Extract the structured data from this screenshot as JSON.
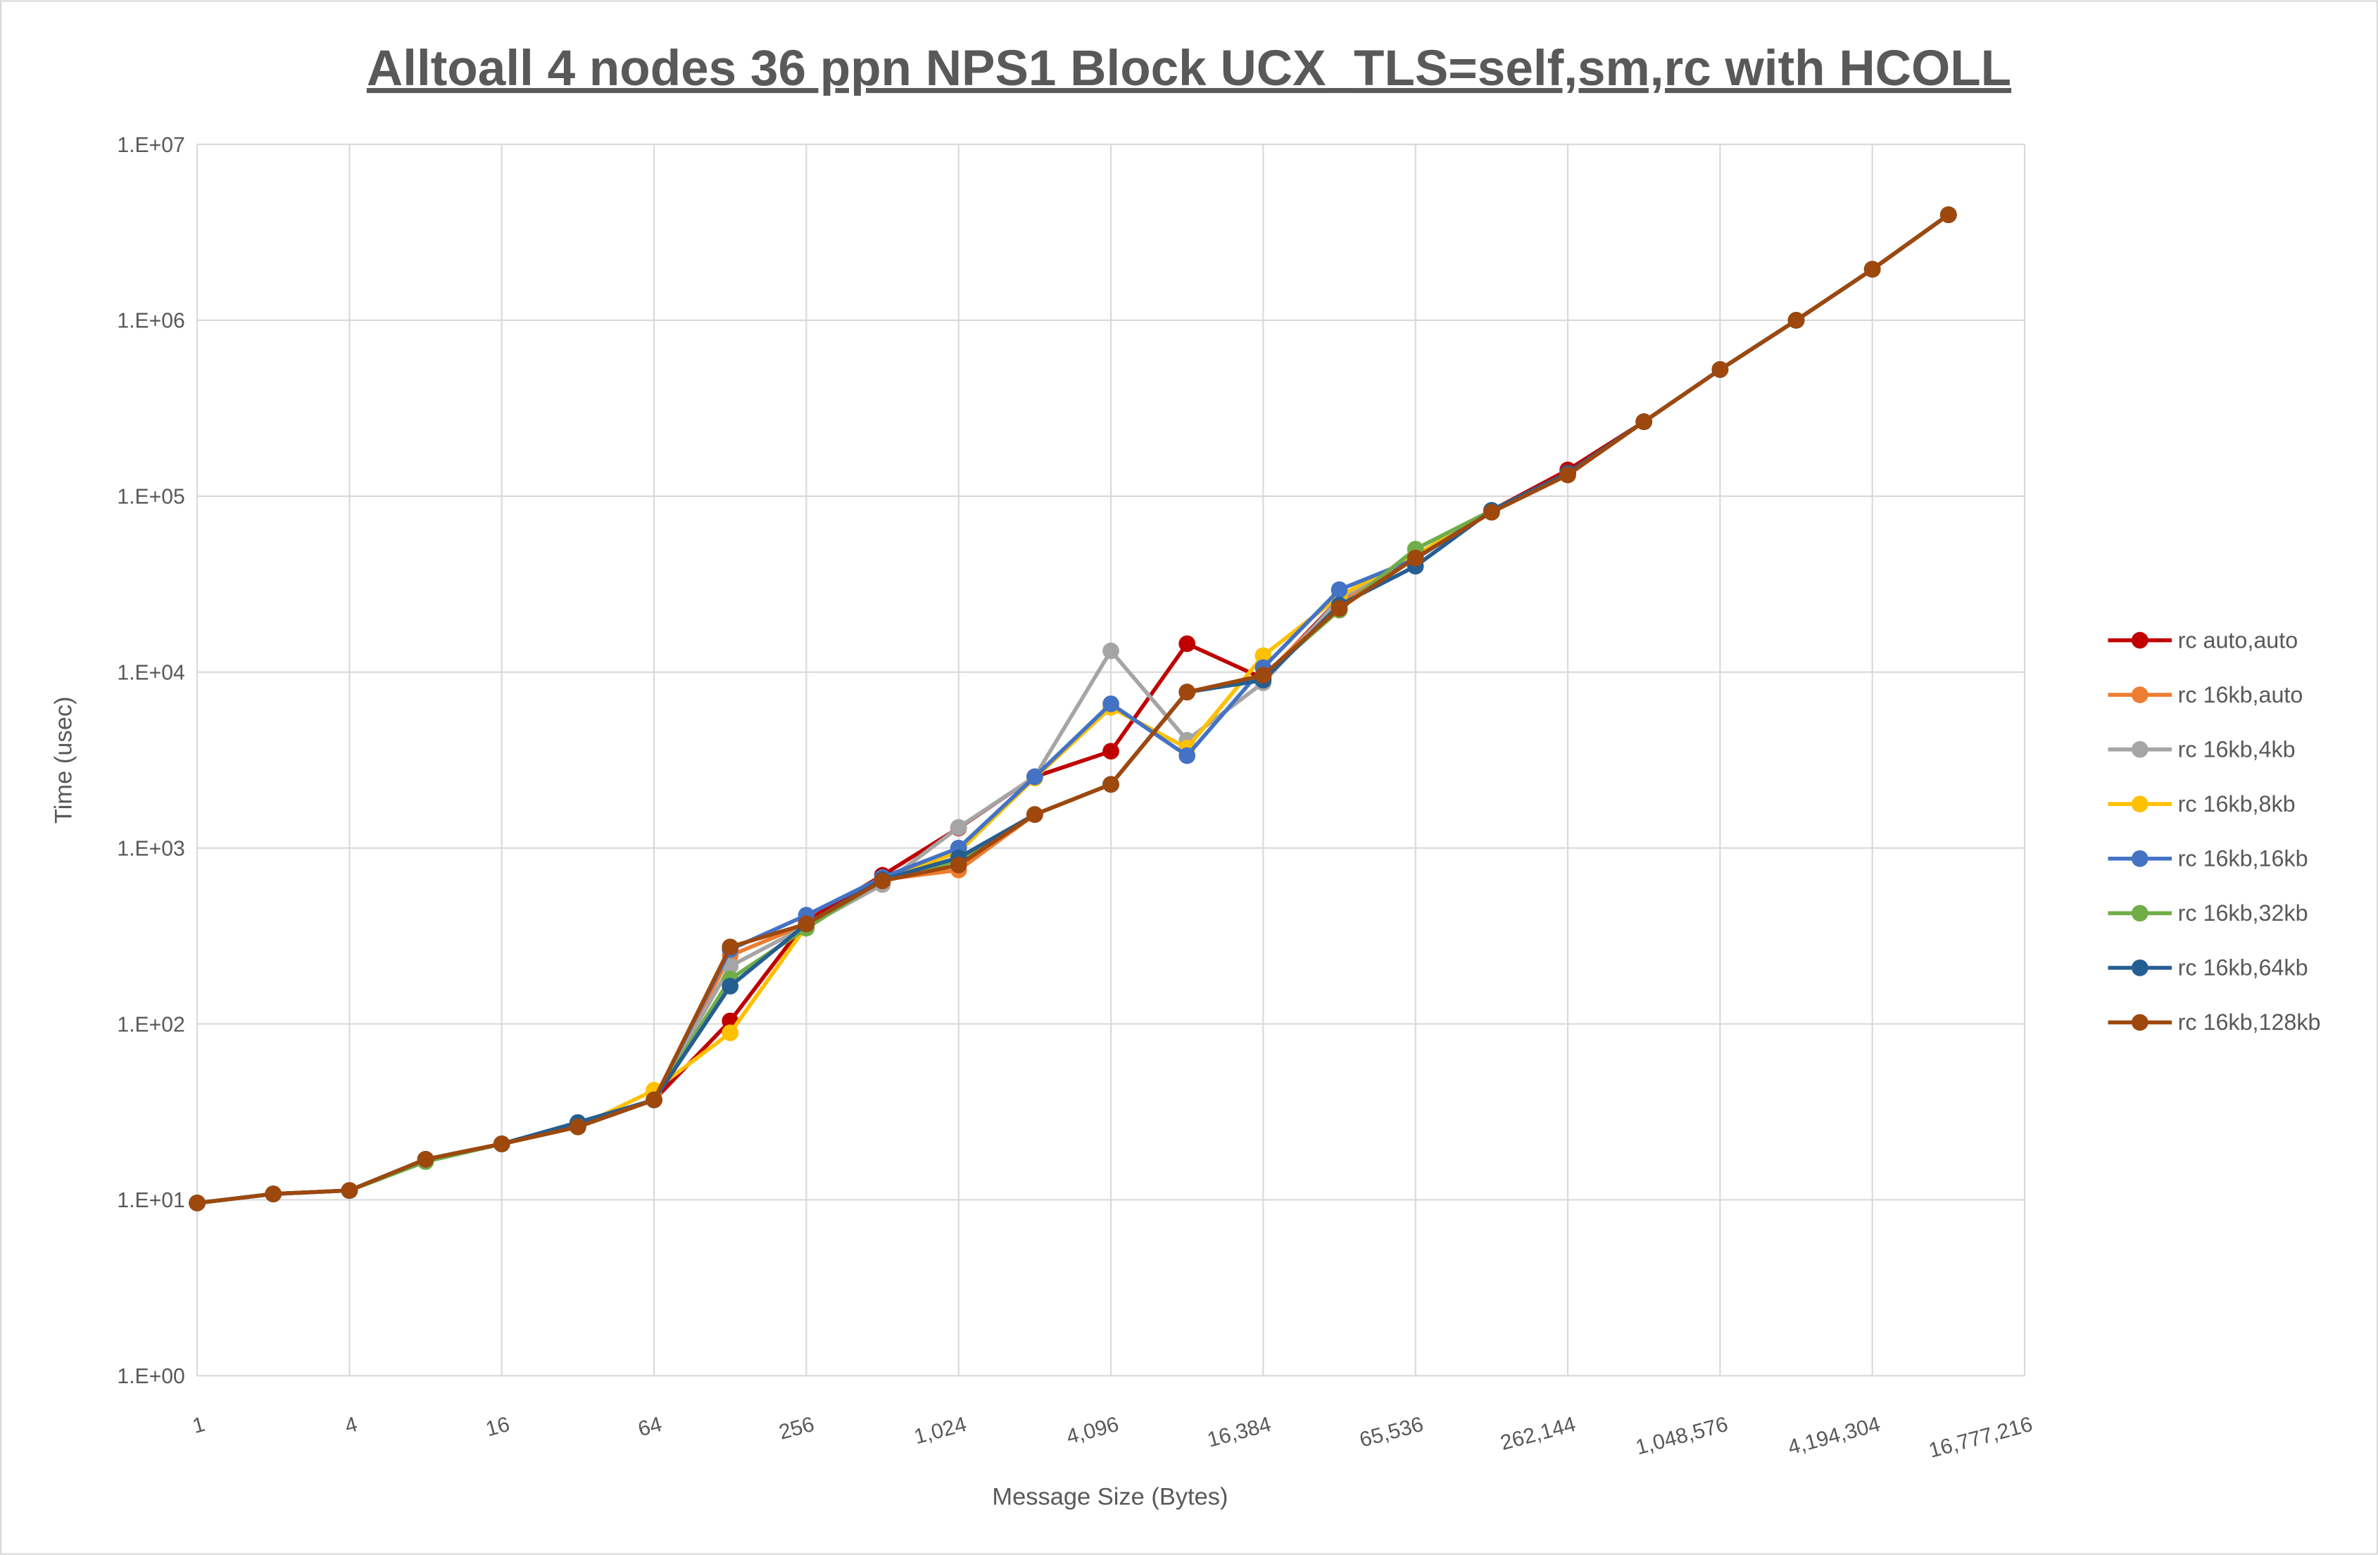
{
  "chart_data": {
    "type": "line",
    "title": "Alltoall 4 nodes 36 ppn NPS1 Block UCX_TLS=self,sm,rc with HCOLL",
    "xlabel": "Message Size (Bytes)",
    "ylabel": "Time (usec)",
    "x_scale": "log2",
    "y_scale": "log10",
    "xlim": [
      1,
      16777216
    ],
    "ylim": [
      1,
      10000000
    ],
    "grid": true,
    "legend_position": "right",
    "x_tick_labels": [
      "1",
      "4",
      "16",
      "64",
      "256",
      "1,024",
      "4,096",
      "16,384",
      "65,536",
      "262,144",
      "1,048,576",
      "4,194,304",
      "16,777,216"
    ],
    "y_tick_labels": [
      "1.E+00",
      "1.E+01",
      "1.E+02",
      "1.E+03",
      "1.E+04",
      "1.E+05",
      "1.E+06",
      "1.E+07"
    ],
    "x": [
      1,
      2,
      4,
      8,
      16,
      32,
      64,
      128,
      256,
      512,
      1024,
      2048,
      4096,
      8192,
      16384,
      32768,
      65536,
      131072,
      262144,
      524288,
      1048576,
      2097152,
      4194304,
      8388608
    ],
    "series": [
      {
        "name": "rc auto,auto",
        "color": "#C00000",
        "values": [
          9.6,
          10.8,
          11.3,
          17,
          20.8,
          26,
          37,
          104,
          385,
          700,
          1300,
          2540,
          3550,
          14500,
          9200,
          26000,
          46000,
          83000,
          141000,
          265000,
          525000,
          1000000,
          1950000,
          3980000
        ]
      },
      {
        "name": "rc 16kb,auto",
        "color": "#ED7D31",
        "values": [
          9.6,
          10.8,
          11.3,
          17,
          20.8,
          26,
          37,
          245,
          370,
          660,
          750,
          1550,
          2300,
          7700,
          9400,
          25000,
          46000,
          83000,
          135000,
          265000,
          525000,
          1000000,
          1950000,
          3980000
        ]
      },
      {
        "name": "rc 16kb,4kb",
        "color": "#A5A5A5",
        "values": [
          9.6,
          10.8,
          11.3,
          17,
          20.8,
          26,
          37,
          213,
          360,
          620,
          1310,
          2540,
          13200,
          4100,
          8700,
          26000,
          46000,
          83000,
          135000,
          265000,
          525000,
          1000000,
          1950000,
          3980000
        ]
      },
      {
        "name": "rc 16kb,8kb",
        "color": "#FFC000",
        "values": [
          9.6,
          10.8,
          11.3,
          17,
          20.8,
          26,
          42,
          89,
          360,
          660,
          950,
          2500,
          6300,
          3700,
          12400,
          27000,
          46000,
          83000,
          135000,
          265000,
          525000,
          1000000,
          1950000,
          3980000
        ]
      },
      {
        "name": "rc 16kb,16kb",
        "color": "#4472C4",
        "values": [
          9.6,
          10.8,
          11.3,
          17,
          20.8,
          27.5,
          37,
          265,
          415,
          680,
          1000,
          2540,
          6600,
          3350,
          10600,
          29400,
          44000,
          83000,
          135000,
          265000,
          525000,
          1000000,
          1950000,
          3980000
        ]
      },
      {
        "name": "rc 16kb,32kb",
        "color": "#70AD47",
        "values": [
          9.6,
          10.8,
          11.3,
          16.5,
          20.8,
          26,
          37,
          180,
          350,
          660,
          850,
          1550,
          2300,
          7700,
          9400,
          22500,
          50000,
          83000,
          135000,
          265000,
          525000,
          1000000,
          1950000,
          3980000
        ]
      },
      {
        "name": "rc 16kb,64kb",
        "color": "#255E91",
        "values": [
          9.6,
          10.8,
          11.3,
          17,
          20.8,
          27.5,
          37,
          164,
          370,
          660,
          880,
          1550,
          2300,
          7700,
          9000,
          24000,
          40000,
          83000,
          135000,
          265000,
          525000,
          1000000,
          1950000,
          3980000
        ]
      },
      {
        "name": "rc 16kb,128kb",
        "color": "#9E480E",
        "values": [
          9.6,
          10.8,
          11.3,
          17,
          20.8,
          26,
          37,
          274,
          370,
          650,
          800,
          1550,
          2300,
          7700,
          9600,
          23000,
          44500,
          81000,
          132000,
          265000,
          525000,
          1000000,
          1950000,
          3980000
        ]
      }
    ]
  }
}
